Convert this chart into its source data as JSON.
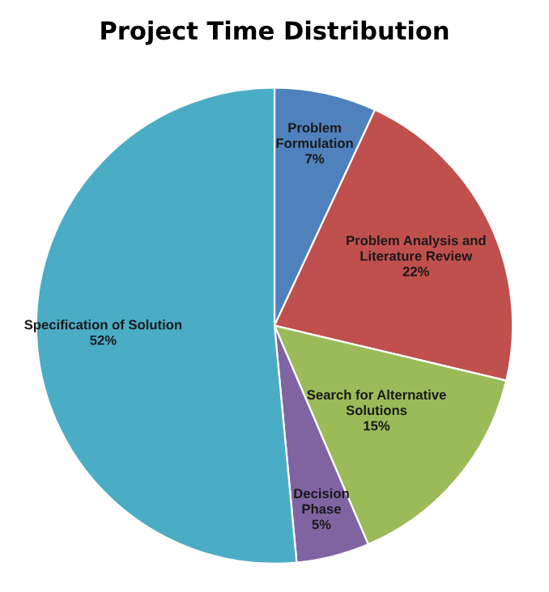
{
  "chart_data": {
    "type": "pie",
    "title": "Project Time Distribution",
    "categories": [
      "Problem\nFormulation",
      "Problem Analysis and\nLiterature Review",
      "Search for Alternative\nSolutions",
      "Decision\nPhase",
      "Specification of Solution"
    ],
    "values": [
      7,
      22,
      15,
      5,
      52
    ],
    "colors": [
      "#4f81bd",
      "#c0504d",
      "#9bbb59",
      "#8064a2",
      "#4bacc6"
    ],
    "value_labels": [
      "7%",
      "22%",
      "15%",
      "5%",
      "52%"
    ]
  }
}
